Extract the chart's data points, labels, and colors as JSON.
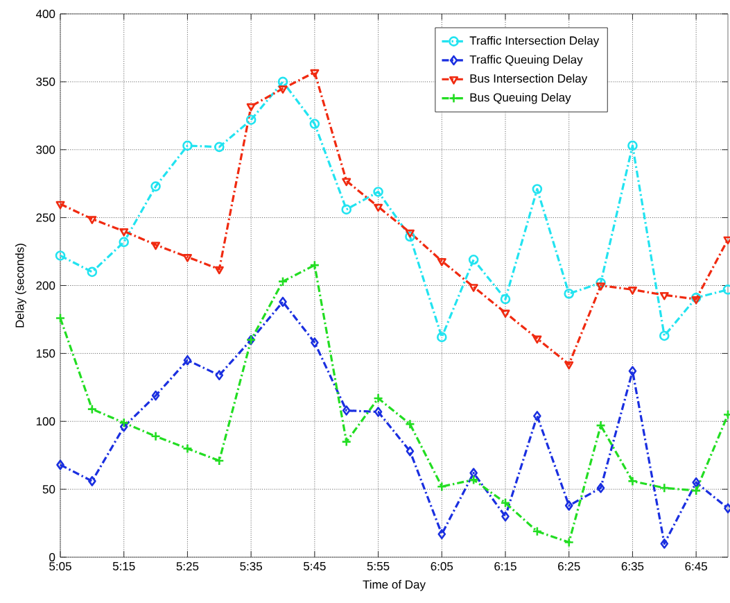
{
  "chart_data": {
    "type": "line",
    "xlabel": "Time of Day",
    "ylabel": "Delay (seconds)",
    "categories": [
      "5:05",
      null,
      "5:15",
      null,
      "5:25",
      null,
      "5:35",
      null,
      "5:45",
      null,
      "5:55",
      null,
      "6:05",
      null,
      "6:15",
      null,
      "6:25",
      null,
      "6:35",
      null,
      "6:45",
      null
    ],
    "ylim": [
      0,
      400
    ],
    "yticks": [
      0,
      50,
      100,
      150,
      200,
      250,
      300,
      350,
      400
    ],
    "grid": true,
    "legend": "top right",
    "line_style": "dashed",
    "series": [
      {
        "name": "Traffic Intersection Delay",
        "color": "#22e3f0",
        "marker": "circle",
        "values": [
          222,
          210,
          232,
          273,
          303,
          302,
          322,
          350,
          319,
          256,
          269,
          236,
          162,
          219,
          190,
          271,
          194,
          202,
          303,
          163,
          191,
          197
        ]
      },
      {
        "name": "Traffic Queuing Delay",
        "color": "#1a2fe0",
        "marker": "diamond",
        "values": [
          68,
          56,
          96,
          119,
          145,
          134,
          160,
          188,
          158,
          108,
          107,
          78,
          17,
          62,
          30,
          104,
          38,
          51,
          137,
          10,
          55,
          36
        ]
      },
      {
        "name": "Bus Intersection Delay",
        "color": "#f02a10",
        "marker": "triangle",
        "values": [
          260,
          249,
          240,
          230,
          221,
          212,
          332,
          345,
          357,
          277,
          258,
          239,
          218,
          199,
          180,
          161,
          142,
          200,
          197,
          193,
          190,
          234
        ]
      },
      {
        "name": "Bus Queuing Delay",
        "color": "#22dd22",
        "marker": "cross",
        "values": [
          176,
          109,
          99,
          89,
          80,
          71,
          160,
          203,
          215,
          85,
          117,
          98,
          52,
          57,
          40,
          19,
          11,
          97,
          56,
          51,
          49,
          105
        ]
      }
    ]
  }
}
